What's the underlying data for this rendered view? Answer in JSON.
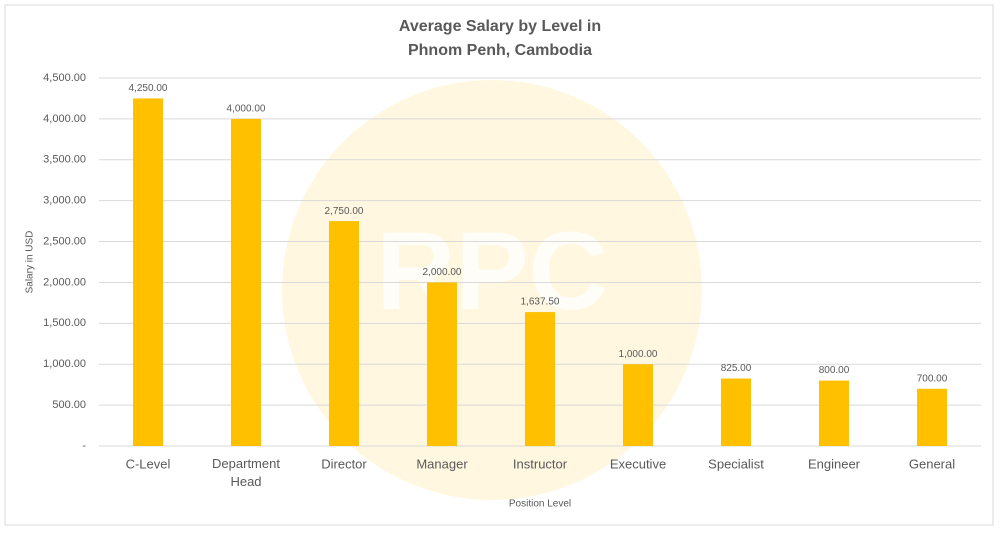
{
  "chart_data": {
    "type": "bar",
    "title": [
      "Average Salary by Level in",
      "Phnom Penh, Cambodia"
    ],
    "watermark": "RPC",
    "y_label": "Salary in USD",
    "x_label": "Position Level",
    "categories": [
      "C-Level",
      "Department Head",
      "Director",
      "Manager",
      "Instructor",
      "Executive",
      "Specialist",
      "Engineer",
      "General"
    ],
    "values": [
      4250,
      4000,
      2750,
      2000,
      1637.5,
      1000,
      825,
      800,
      700
    ],
    "value_labels": [
      "4,250.00",
      "4,000.00",
      "2,750.00",
      "2,000.00",
      "1,637.50",
      "1,000.00",
      "825.00",
      "800.00",
      "700.00"
    ],
    "color": "#ffc000",
    "ylim": [
      0,
      4500
    ],
    "yticks": [
      {
        "value": 0,
        "label": "-"
      },
      {
        "value": 500,
        "label": "500.00"
      },
      {
        "value": 1000,
        "label": "1,000.00"
      },
      {
        "value": 1500,
        "label": "1,500.00"
      },
      {
        "value": 2000,
        "label": "2,000.00"
      },
      {
        "value": 2500,
        "label": "2,500.00"
      },
      {
        "value": 3000,
        "label": "3,000.00"
      },
      {
        "value": 3500,
        "label": "3,500.00"
      },
      {
        "value": 4000,
        "label": "4,000.00"
      },
      {
        "value": 4500,
        "label": "4,500.00"
      }
    ],
    "grid": true
  }
}
